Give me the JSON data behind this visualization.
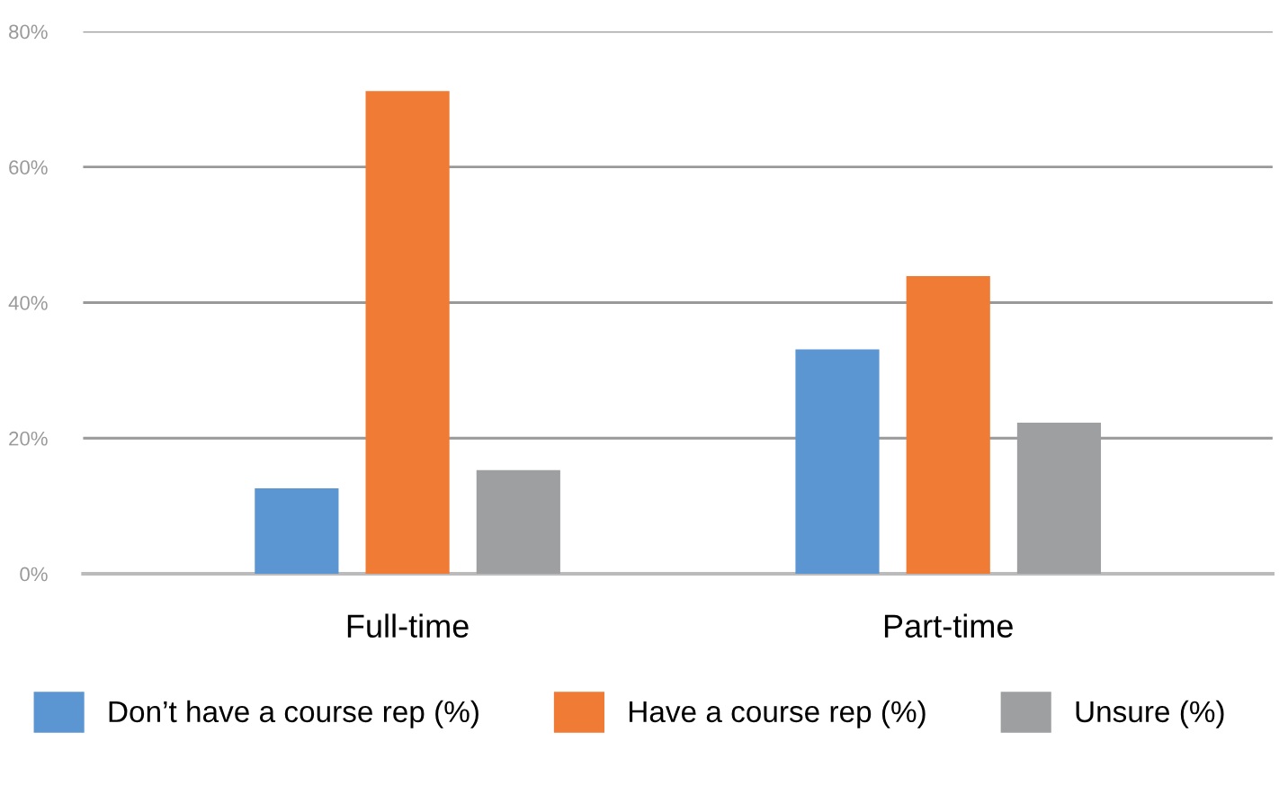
{
  "chart_data": {
    "type": "bar",
    "categories": [
      "Full-time",
      "Part-time"
    ],
    "series": [
      {
        "name": "Don’t have a course rep (%)",
        "color": "#5b95d2",
        "values": [
          12.6,
          33.1
        ]
      },
      {
        "name": "Have a course rep (%)",
        "color": "#ef7b35",
        "values": [
          71.2,
          43.9
        ]
      },
      {
        "name": "Unsure (%)",
        "color": "#9d9fa0",
        "values": [
          15.3,
          22.3
        ]
      }
    ],
    "ylim": [
      0,
      80
    ],
    "yticks": [
      {
        "value": 0,
        "label": "0%"
      },
      {
        "value": 20,
        "label": "20%"
      },
      {
        "value": 40,
        "label": "40%"
      },
      {
        "value": 60,
        "label": "60%"
      },
      {
        "value": 80,
        "label": "80%"
      }
    ],
    "grid": "y",
    "legend": "bottom"
  }
}
